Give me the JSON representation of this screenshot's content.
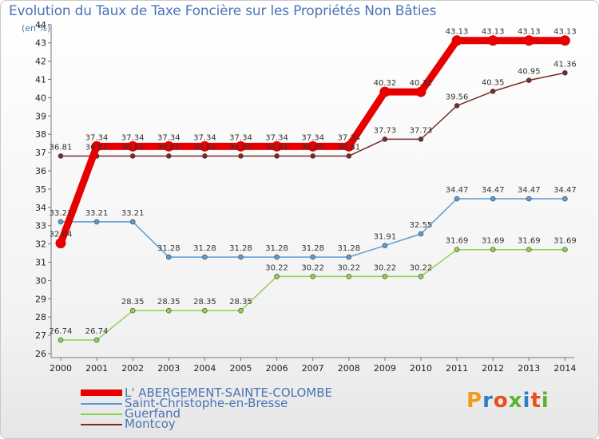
{
  "chart_data": {
    "type": "line",
    "title": "Evolution du Taux de Taxe Foncière sur les Propriétés Non Bâties",
    "unit_label": "(en %)",
    "x": [
      "2000",
      "2001",
      "2002",
      "2003",
      "2004",
      "2005",
      "2006",
      "2007",
      "2008",
      "2009",
      "2010",
      "2011",
      "2012",
      "2013",
      "2014"
    ],
    "ylim": [
      26,
      44
    ],
    "yticks": [
      "26",
      "27",
      "28",
      "29",
      "30",
      "31",
      "32",
      "33",
      "34",
      "35",
      "36",
      "37",
      "38",
      "39",
      "40",
      "41",
      "42",
      "43",
      "44"
    ],
    "grid": false,
    "legend_position": "bottom-left",
    "series": [
      {
        "name": "L' ABERGEMENT-SAINTE-COLOMBE",
        "color": "#e80000",
        "values": [
          32.04,
          37.34,
          37.34,
          37.34,
          37.34,
          37.34,
          37.34,
          37.34,
          37.34,
          40.32,
          40.32,
          43.13,
          43.13,
          43.13,
          43.13
        ],
        "labels": [
          "32.04",
          "37.34",
          "37.34",
          "37.34",
          "37.34",
          "37.34",
          "37.34",
          "37.34",
          "37.34",
          "40.32",
          "40.32",
          "43.13",
          "43.13",
          "43.13",
          "43.13"
        ]
      },
      {
        "name": "Saint-Christophe-en-Bresse",
        "color": "#5b9bd5",
        "values": [
          33.21,
          33.21,
          33.21,
          31.28,
          31.28,
          31.28,
          31.28,
          31.28,
          31.28,
          31.91,
          32.55,
          34.47,
          34.47,
          34.47,
          34.47
        ],
        "labels": [
          "33.21",
          "33.21",
          "33.21",
          "31.28",
          "31.28",
          "31.28",
          "31.28",
          "31.28",
          "31.28",
          "31.91",
          "32.55",
          "34.47",
          "34.47",
          "34.47",
          "34.47"
        ]
      },
      {
        "name": "Guerfand",
        "color": "#8fd14f",
        "values": [
          26.74,
          26.74,
          28.35,
          28.35,
          28.35,
          28.35,
          30.22,
          30.22,
          30.22,
          30.22,
          30.22,
          31.69,
          31.69,
          31.69,
          31.69
        ],
        "labels": [
          "26.74",
          "26.74",
          "28.35",
          "28.35",
          "28.35",
          "28.35",
          "30.22",
          "30.22",
          "30.22",
          "30.22",
          "30.22",
          "31.69",
          "31.69",
          "31.69",
          "31.69"
        ]
      },
      {
        "name": "Montcoy",
        "color": "#7b2a2a",
        "values": [
          36.81,
          36.81,
          36.81,
          36.81,
          36.81,
          36.81,
          36.81,
          36.81,
          36.81,
          37.73,
          37.73,
          39.56,
          40.35,
          40.95,
          41.36
        ],
        "labels": [
          "36.81",
          "36.81",
          "36.81",
          "36.81",
          "36.81",
          "36.81",
          "36.81",
          "36.81",
          "36.81",
          "37.73",
          "37.73",
          "39.56",
          "40.35",
          "40.95",
          "41.36"
        ]
      }
    ]
  },
  "logo": {
    "text": "Proxiti",
    "colors": [
      "#f39a1e",
      "#2f7fc4",
      "#e94e1b",
      "#5cb531",
      "#2f7fc4",
      "#e94e1b",
      "#5cb531"
    ]
  }
}
